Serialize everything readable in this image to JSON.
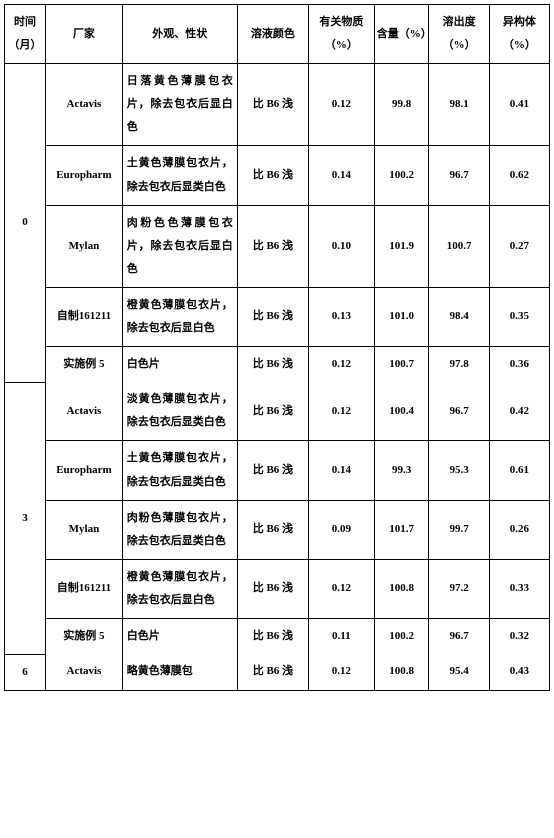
{
  "colors": {
    "border": "#000000",
    "background": "#ffffff",
    "text": "#000000"
  },
  "header": {
    "time": "时间（月）",
    "mfr": "厂家",
    "appearance": "外观、性状",
    "solColor": "溶液颜色",
    "related": "有关物质（%）",
    "content": "含量（%）",
    "dissolution": "溶出度（%）",
    "isomer": "异构体（%）"
  },
  "groups": [
    {
      "time": "0",
      "rows": [
        {
          "mfr": "Actavis",
          "desc": "日落黄色薄膜包衣片，除去包衣后显白色",
          "color": "比 B6 浅",
          "rel": "0.12",
          "cont": "99.8",
          "diss": "98.1",
          "iso": "0.41"
        },
        {
          "mfr": "Europharm",
          "desc": "土黄色薄膜包衣片，除去包衣后显类白色",
          "color": "比 B6 浅",
          "rel": "0.14",
          "cont": "100.2",
          "diss": "96.7",
          "iso": "0.62"
        },
        {
          "mfr": "Mylan",
          "desc": "肉粉色色薄膜包衣片，除去包衣后显白色",
          "color": "比 B6 浅",
          "rel": "0.10",
          "cont": "101.9",
          "diss": "100.7",
          "iso": "0.27"
        },
        {
          "mfr": "自制161211",
          "desc": "橙黄色薄膜包衣片，除去包衣后显白色",
          "color": "比 B6 浅",
          "rel": "0.13",
          "cont": "101.0",
          "diss": "98.4",
          "iso": "0.35"
        },
        {
          "mfr": "实施例 5",
          "desc": "白色片",
          "color": "比 B6 浅",
          "rel": "0.12",
          "cont": "100.7",
          "diss": "97.8",
          "iso": "0.36"
        }
      ]
    },
    {
      "time": "3",
      "rows": [
        {
          "mfr": "Actavis",
          "desc": "淡黄色薄膜包衣片，除去包衣后显类白色",
          "color": "比 B6 浅",
          "rel": "0.12",
          "cont": "100.4",
          "diss": "96.7",
          "iso": "0.42"
        },
        {
          "mfr": "Europharm",
          "desc": "土黄色薄膜包衣片，除去包衣后显类白色",
          "color": "比 B6 浅",
          "rel": "0.14",
          "cont": "99.3",
          "diss": "95.3",
          "iso": "0.61"
        },
        {
          "mfr": "Mylan",
          "desc": "肉粉色薄膜包衣片，除去包衣后显类白色",
          "color": "比 B6 浅",
          "rel": "0.09",
          "cont": "101.7",
          "diss": "99.7",
          "iso": "0.26"
        },
        {
          "mfr": "自制161211",
          "desc": "橙黄色薄膜包衣片，除去包衣后显白色",
          "color": "比 B6 浅",
          "rel": "0.12",
          "cont": "100.8",
          "diss": "97.2",
          "iso": "0.33"
        },
        {
          "mfr": "实施例 5",
          "desc": "白色片",
          "color": "比 B6 浅",
          "rel": "0.11",
          "cont": "100.2",
          "diss": "96.7",
          "iso": "0.32"
        }
      ]
    },
    {
      "time": "6",
      "rows": [
        {
          "mfr": "Actavis",
          "desc": "略黄色薄膜包",
          "color": "比 B6 浅",
          "rel": "0.12",
          "cont": "100.8",
          "diss": "95.4",
          "iso": "0.43"
        }
      ]
    }
  ]
}
